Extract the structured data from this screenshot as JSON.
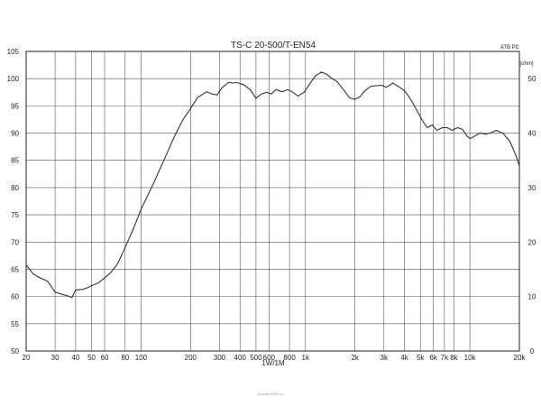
{
  "chart_data": {
    "type": "line",
    "title": "TS-C 20-500/T-EN54",
    "corner_label": "ATB PC",
    "xlabel": "1W/1M",
    "x_scale": "log",
    "xlim": [
      20,
      20000
    ],
    "ylim_left": [
      50,
      105
    ],
    "ylim_right": [
      0,
      55
    ],
    "right_unit": "[ohm]",
    "grid": true,
    "x_ticks": [
      20,
      30,
      40,
      50,
      60,
      80,
      100,
      200,
      300,
      400,
      500,
      600,
      800,
      1000,
      2000,
      3000,
      4000,
      5000,
      6000,
      7000,
      8000,
      10000,
      20000
    ],
    "x_tick_labels": [
      "20",
      "30",
      "40",
      "50",
      "60",
      "80",
      "100",
      "200",
      "300",
      "400",
      "500",
      "600",
      "800",
      "1k",
      "2k",
      "3k",
      "4k",
      "5k",
      "6k",
      "7k",
      "8k",
      "10k",
      "20k"
    ],
    "y_ticks_left": [
      "105",
      "100",
      "95",
      "90",
      "85",
      "80",
      "75",
      "70",
      "65",
      "60",
      "55",
      "50"
    ],
    "y_ticks_right": [
      "50",
      "40",
      "30",
      "20",
      "10",
      "0"
    ],
    "series": [
      {
        "x": [
          20,
          22,
          24,
          27,
          30,
          33,
          36,
          38,
          40,
          44,
          47,
          50,
          55,
          60,
          66,
          72,
          80,
          90,
          100,
          120,
          140,
          160,
          180,
          200,
          220,
          250,
          270,
          290,
          310,
          340,
          360,
          380,
          420,
          460,
          500,
          540,
          580,
          620,
          660,
          720,
          780,
          840,
          900,
          980,
          1060,
          1150,
          1250,
          1350,
          1450,
          1550,
          1650,
          1750,
          1850,
          2000,
          2150,
          2300,
          2500,
          2700,
          2900,
          3100,
          3400,
          3700,
          4000,
          4300,
          4700,
          5100,
          5500,
          5900,
          6300,
          6800,
          7300,
          7800,
          8400,
          9000,
          9600,
          10000,
          10500,
          11500,
          12500,
          13500,
          14500,
          16000,
          17500,
          19000,
          20000
        ],
        "y": [
          65.8,
          64.2,
          63.5,
          62.8,
          60.8,
          60.4,
          60.1,
          59.8,
          61.2,
          61.3,
          61.6,
          62.0,
          62.5,
          63.4,
          64.5,
          66.0,
          69.0,
          72.5,
          76.0,
          81.0,
          85.5,
          89.5,
          92.5,
          94.5,
          96.5,
          97.6,
          97.2,
          97.0,
          98.3,
          99.3,
          99.2,
          99.3,
          98.9,
          98.0,
          96.4,
          97.2,
          97.5,
          97.2,
          98.0,
          97.6,
          98.0,
          97.5,
          96.8,
          97.5,
          99.0,
          100.5,
          101.2,
          100.8,
          100.0,
          99.5,
          98.5,
          97.5,
          96.5,
          96.2,
          96.7,
          97.8,
          98.6,
          98.7,
          98.8,
          98.4,
          99.2,
          98.5,
          97.8,
          96.5,
          94.5,
          92.5,
          91.0,
          91.5,
          90.5,
          91.0,
          91.0,
          90.5,
          91.0,
          90.7,
          89.5,
          89.0,
          89.3,
          90.0,
          89.8,
          90.1,
          90.5,
          89.9,
          88.5,
          86.0,
          84.0
        ]
      }
    ]
  },
  "footer": {
    "watermark": "tt-audio.f4831.pl"
  }
}
